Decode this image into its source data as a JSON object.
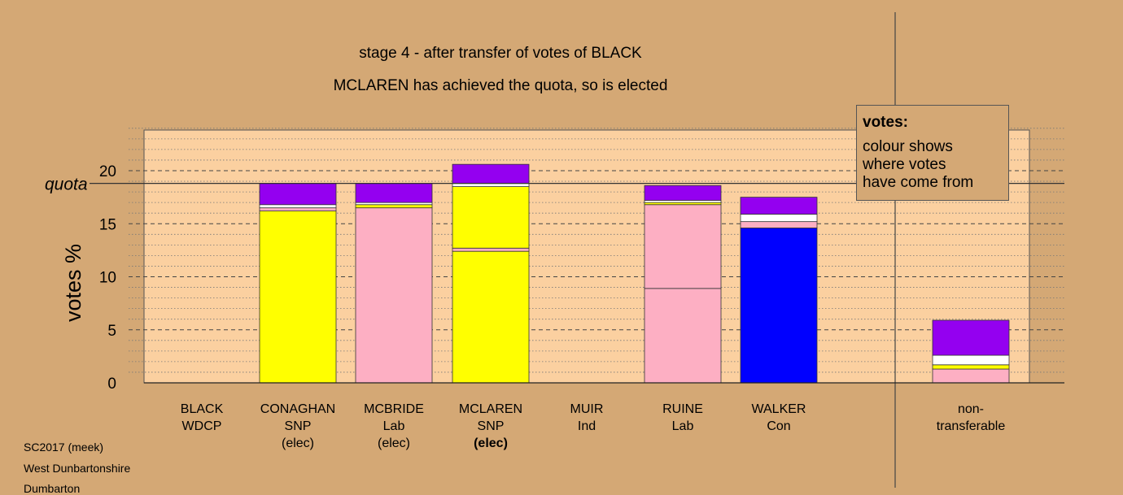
{
  "header": {
    "title": "stage 4 - after transfer of votes of BLACK",
    "subtitle": "MCLAREN has achieved the quota, so is elected"
  },
  "legend": {
    "heading": "votes:",
    "lines": [
      "colour shows",
      "where votes",
      "have come from"
    ]
  },
  "footer": {
    "line1": "SC2017 (meek)",
    "line2": "West Dunbartonshire",
    "line3": "Dumbarton"
  },
  "colors": {
    "background": "#d4a875",
    "plot_bg": "#fbd0a0",
    "SNP": "#ffff00",
    "Lab": "#fdafc3",
    "Con": "#0000ff",
    "white": "#ffffff",
    "other": "#9400f0"
  },
  "chart_data": {
    "type": "bar",
    "stacked": true,
    "ylabel": "votes %",
    "ylim": [
      0,
      24
    ],
    "yticks": [
      0,
      5,
      10,
      15,
      20
    ],
    "quota": 18.8,
    "quota_label": "quota",
    "grid": "dashed major lines at 5, dotted minor lines at 1",
    "categories": [
      {
        "lines": [
          "BLACK",
          "WDCP"
        ],
        "elected": false
      },
      {
        "lines": [
          "CONAGHAN",
          "SNP",
          "(elec)"
        ],
        "elected": true
      },
      {
        "lines": [
          "MCBRIDE",
          "Lab",
          "(elec)"
        ],
        "elected": true
      },
      {
        "lines": [
          "MCLAREN",
          "SNP",
          "(elec)"
        ],
        "elected": true,
        "highlight": true
      },
      {
        "lines": [
          "MUIR",
          "Ind"
        ],
        "elected": false
      },
      {
        "lines": [
          "RUINE",
          "Lab"
        ],
        "elected": false
      },
      {
        "lines": [
          "WALKER",
          "Con"
        ],
        "elected": false
      },
      {
        "lines": [
          "non-",
          "transferable"
        ],
        "elected": false,
        "separated": true
      }
    ],
    "stacks": [
      [],
      [
        {
          "color": "#ffff00",
          "value": 16.2
        },
        {
          "color": "#fdafc3",
          "value": 0.3
        },
        {
          "color": "#ffffff",
          "value": 0.3
        },
        {
          "color": "#9400f0",
          "value": 2.0
        }
      ],
      [
        {
          "color": "#fdafc3",
          "value": 16.5
        },
        {
          "color": "#ffff00",
          "value": 0.3
        },
        {
          "color": "#ffffff",
          "value": 0.2
        },
        {
          "color": "#9400f0",
          "value": 1.8
        }
      ],
      [
        {
          "color": "#ffff00",
          "value": 12.4
        },
        {
          "color": "#fdafc3",
          "value": 0.3
        },
        {
          "color": "#ffff00",
          "value": 5.8
        },
        {
          "color": "#ffffff",
          "value": 0.3
        },
        {
          "color": "#9400f0",
          "value": 1.8
        }
      ],
      [],
      [
        {
          "color": "#fdafc3",
          "value": 8.9
        },
        {
          "color": "#fdafc3",
          "value": 7.9
        },
        {
          "color": "#ffff00",
          "value": 0.2
        },
        {
          "color": "#ffffff",
          "value": 0.2
        },
        {
          "color": "#9400f0",
          "value": 1.4
        }
      ],
      [
        {
          "color": "#0000ff",
          "value": 14.6
        },
        {
          "color": "#fdafc3",
          "value": 0.6
        },
        {
          "color": "#ffffff",
          "value": 0.7
        },
        {
          "color": "#9400f0",
          "value": 1.6
        }
      ],
      [
        {
          "color": "#fdafc3",
          "value": 1.3
        },
        {
          "color": "#ffff00",
          "value": 0.4
        },
        {
          "color": "#ffffff",
          "value": 0.9
        },
        {
          "color": "#9400f0",
          "value": 3.3
        }
      ]
    ]
  }
}
